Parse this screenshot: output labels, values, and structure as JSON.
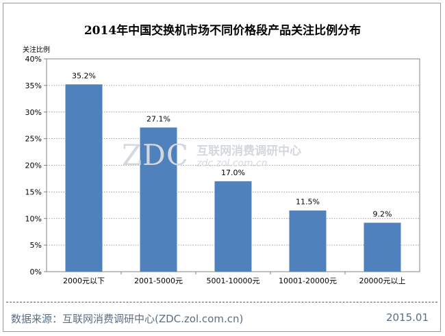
{
  "chart_data": {
    "type": "bar",
    "title": "2014年中国交换机市场不同价格段产品关注比例分布",
    "ylabel": "关注比例",
    "xlabel": "",
    "categories": [
      "2000元以下",
      "2001-5000元",
      "5001-10000元",
      "10001-20000元",
      "20000元以上"
    ],
    "values": [
      35.2,
      27.1,
      17.0,
      11.5,
      9.2
    ],
    "value_labels": [
      "35.2%",
      "27.1%",
      "17.0%",
      "11.5%",
      "9.2%"
    ],
    "yticks": [
      "0%",
      "5%",
      "10%",
      "15%",
      "20%",
      "25%",
      "30%",
      "35%",
      "40%"
    ],
    "ylim": [
      0,
      40
    ],
    "grid": true,
    "bar_color": "#4f81bd"
  },
  "watermark": {
    "logo": "ZDC",
    "name": "互联网消费调研中心",
    "url": "zdc.zol.com.cn"
  },
  "footer": {
    "source": "数据来源：互联网消费调研中心(ZDC.zol.com.cn)",
    "date": "2015.01"
  }
}
